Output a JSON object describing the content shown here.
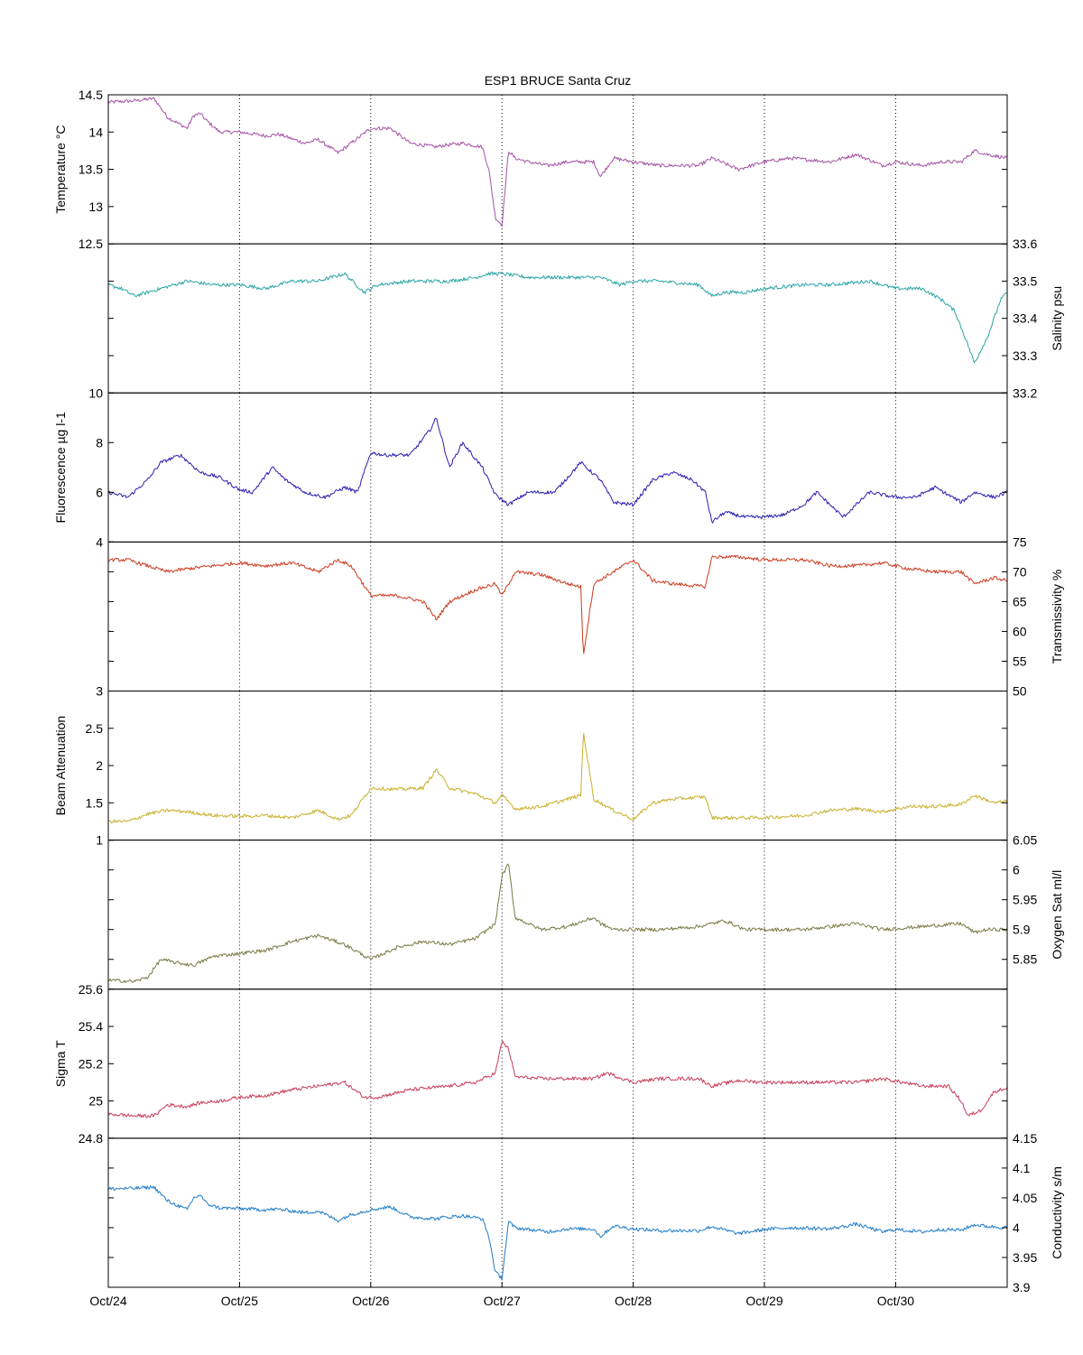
{
  "title": "ESP1 BRUCE Santa Cruz",
  "x_ticks": [
    "Oct/24",
    "Oct/25",
    "Oct/26",
    "Oct/27",
    "Oct/28",
    "Oct/29",
    "Oct/30"
  ],
  "chart_data": [
    {
      "type": "line",
      "name": "temperature",
      "ylabel": "Temperature °C",
      "axis_side": "left",
      "color": "#a552a5",
      "ylim": [
        12.5,
        14.5
      ],
      "yticks": [
        12.5,
        13,
        13.5,
        14,
        14.5
      ],
      "ytick_labels": [
        "12.5",
        "13",
        "13.5",
        "14",
        "14.5"
      ],
      "xlim": [
        0,
        6.85
      ],
      "x": [
        0,
        0.2,
        0.35,
        0.45,
        0.6,
        0.65,
        0.7,
        0.75,
        0.85,
        1,
        1.2,
        1.3,
        1.5,
        1.6,
        1.75,
        1.85,
        2,
        2.15,
        2.3,
        2.5,
        2.55,
        2.7,
        2.85,
        2.9,
        2.95,
        3,
        3.05,
        3.1,
        3.2,
        3.35,
        3.5,
        3.7,
        3.75,
        3.85,
        4,
        4.2,
        4.5,
        4.6,
        4.8,
        5,
        5.2,
        5.5,
        5.7,
        5.9,
        6,
        6.2,
        6.35,
        6.5,
        6.6,
        6.7,
        6.85
      ],
      "y": [
        14.4,
        14.42,
        14.45,
        14.2,
        14.05,
        14.22,
        14.25,
        14.15,
        14,
        14.0,
        13.95,
        13.97,
        13.85,
        13.9,
        13.72,
        13.85,
        14.05,
        14.05,
        13.85,
        13.8,
        13.82,
        13.85,
        13.8,
        13.5,
        12.85,
        12.75,
        13.75,
        13.65,
        13.6,
        13.55,
        13.6,
        13.6,
        13.4,
        13.65,
        13.6,
        13.55,
        13.55,
        13.65,
        13.5,
        13.6,
        13.65,
        13.6,
        13.7,
        13.55,
        13.6,
        13.55,
        13.6,
        13.6,
        13.75,
        13.7,
        13.65
      ]
    },
    {
      "type": "line",
      "name": "salinity",
      "ylabel": "Salinity psu",
      "axis_side": "right",
      "color": "#2aa5a5",
      "ylim": [
        33.2,
        33.6
      ],
      "yticks": [
        33.2,
        33.3,
        33.4,
        33.5,
        33.6
      ],
      "ytick_labels": [
        "33.2",
        "33.3",
        "33.4",
        "33.5",
        "33.6"
      ],
      "xlim": [
        0,
        6.85
      ],
      "x": [
        0,
        0.1,
        0.2,
        0.4,
        0.6,
        0.8,
        1,
        1.2,
        1.4,
        1.6,
        1.8,
        1.95,
        2.05,
        2.3,
        2.6,
        2.8,
        2.9,
        3,
        3.2,
        3.5,
        3.75,
        3.9,
        4,
        4.2,
        4.5,
        4.6,
        4.7,
        4.85,
        5,
        5.3,
        5.5,
        5.8,
        6,
        6.2,
        6.35,
        6.45,
        6.55,
        6.6,
        6.7,
        6.8,
        6.85
      ],
      "y": [
        33.49,
        33.48,
        33.46,
        33.48,
        33.5,
        33.49,
        33.49,
        33.48,
        33.5,
        33.5,
        33.52,
        33.47,
        33.49,
        33.5,
        33.5,
        33.51,
        33.52,
        33.52,
        33.51,
        33.51,
        33.51,
        33.49,
        33.5,
        33.5,
        33.49,
        33.46,
        33.47,
        33.47,
        33.48,
        33.49,
        33.49,
        33.5,
        33.48,
        33.48,
        33.45,
        33.42,
        33.33,
        33.28,
        33.35,
        33.45,
        33.47
      ]
    },
    {
      "type": "line",
      "name": "fluorescence",
      "ylabel": "Fluorescence µg l-1",
      "axis_side": "left",
      "color": "#2b1fb0",
      "ylim": [
        4,
        10
      ],
      "yticks": [
        4,
        6,
        8,
        10
      ],
      "ytick_labels": [
        "4",
        "6",
        "8",
        "10"
      ],
      "xlim": [
        0,
        6.85
      ],
      "x": [
        0,
        0.15,
        0.3,
        0.4,
        0.55,
        0.7,
        0.85,
        1,
        1.1,
        1.25,
        1.35,
        1.5,
        1.65,
        1.8,
        1.9,
        2,
        2.1,
        2.3,
        2.45,
        2.5,
        2.6,
        2.7,
        2.85,
        2.95,
        3.05,
        3.2,
        3.4,
        3.6,
        3.75,
        3.85,
        4,
        4.15,
        4.3,
        4.45,
        4.55,
        4.6,
        4.7,
        4.85,
        5,
        5.15,
        5.3,
        5.4,
        5.6,
        5.8,
        6,
        6.15,
        6.3,
        6.5,
        6.6,
        6.75,
        6.85
      ],
      "y": [
        6,
        5.8,
        6.5,
        7.2,
        7.5,
        6.8,
        6.6,
        6.1,
        6.0,
        7.0,
        6.5,
        6.0,
        5.8,
        6.2,
        6.0,
        7.6,
        7.5,
        7.5,
        8.5,
        9.0,
        7.0,
        8.0,
        7.0,
        5.9,
        5.5,
        6.0,
        6.0,
        7.2,
        6.5,
        5.6,
        5.5,
        6.5,
        6.8,
        6.5,
        6.0,
        4.8,
        5.2,
        5.0,
        5.0,
        5.1,
        5.5,
        6.0,
        5.0,
        6.0,
        5.8,
        5.8,
        6.2,
        5.6,
        6.0,
        5.8,
        6.0
      ]
    },
    {
      "type": "line",
      "name": "transmissivity",
      "ylabel": "Transmissivity %",
      "axis_side": "right",
      "color": "#cc3a1e",
      "ylim": [
        50,
        75
      ],
      "yticks": [
        50,
        55,
        60,
        65,
        70,
        75
      ],
      "ytick_labels": [
        "50",
        "55",
        "60",
        "65",
        "70",
        "75"
      ],
      "xlim": [
        0,
        6.85
      ],
      "x": [
        0,
        0.15,
        0.3,
        0.45,
        0.6,
        0.8,
        1,
        1.2,
        1.4,
        1.6,
        1.75,
        1.85,
        2,
        2.2,
        2.4,
        2.5,
        2.6,
        2.8,
        2.95,
        3,
        3.1,
        3.3,
        3.5,
        3.6,
        3.62,
        3.7,
        3.85,
        4,
        4.15,
        4.3,
        4.55,
        4.6,
        4.8,
        5,
        5.3,
        5.5,
        5.7,
        5.9,
        6.1,
        6.3,
        6.5,
        6.6,
        6.75,
        6.85
      ],
      "y": [
        72,
        72,
        71,
        70,
        70.5,
        71,
        71.5,
        71,
        71.5,
        70,
        72,
        71,
        66,
        66,
        65,
        62,
        65,
        67,
        68,
        66,
        70,
        69.5,
        68,
        67.5,
        56,
        68,
        70,
        72,
        68.5,
        68,
        67.5,
        72.5,
        72.5,
        72,
        72,
        71,
        71,
        71.5,
        70.5,
        70,
        70,
        68,
        69,
        68.5
      ]
    },
    {
      "type": "line",
      "name": "beam-attenuation",
      "ylabel": "Beam Attenuation",
      "axis_side": "left",
      "color": "#c9b02c",
      "ylim": [
        1,
        3
      ],
      "yticks": [
        1,
        1.5,
        2,
        2.5,
        3
      ],
      "ytick_labels": [
        "1",
        "1.5",
        "2",
        "2.5",
        "3"
      ],
      "xlim": [
        0,
        6.85
      ],
      "x": [
        0,
        0.15,
        0.3,
        0.45,
        0.6,
        0.8,
        1,
        1.2,
        1.4,
        1.6,
        1.75,
        1.85,
        2,
        2.2,
        2.4,
        2.5,
        2.6,
        2.8,
        2.95,
        3,
        3.1,
        3.3,
        3.5,
        3.6,
        3.62,
        3.7,
        3.85,
        4,
        4.15,
        4.3,
        4.55,
        4.6,
        4.8,
        5,
        5.3,
        5.5,
        5.7,
        5.9,
        6.1,
        6.3,
        6.5,
        6.6,
        6.75,
        6.85
      ],
      "y": [
        1.25,
        1.25,
        1.35,
        1.4,
        1.38,
        1.33,
        1.32,
        1.33,
        1.3,
        1.4,
        1.28,
        1.33,
        1.7,
        1.68,
        1.7,
        1.95,
        1.7,
        1.62,
        1.5,
        1.6,
        1.42,
        1.45,
        1.55,
        1.6,
        2.45,
        1.55,
        1.4,
        1.28,
        1.5,
        1.55,
        1.58,
        1.3,
        1.3,
        1.3,
        1.33,
        1.4,
        1.42,
        1.38,
        1.45,
        1.45,
        1.48,
        1.6,
        1.5,
        1.52
      ]
    },
    {
      "type": "line",
      "name": "oxygen-sat",
      "ylabel": "Oxygen Sat ml/l",
      "axis_side": "right",
      "color": "#7a7a45",
      "ylim": [
        5.8,
        6.05
      ],
      "yticks": [
        5.85,
        5.9,
        5.95,
        6,
        6.05
      ],
      "ytick_labels": [
        "5.85",
        "5.9",
        "5.95",
        "6",
        "6.05"
      ],
      "xlim": [
        0,
        6.85
      ],
      "x": [
        0,
        0.2,
        0.3,
        0.4,
        0.5,
        0.65,
        0.8,
        1,
        1.2,
        1.4,
        1.6,
        1.8,
        2,
        2.2,
        2.4,
        2.6,
        2.8,
        2.95,
        3,
        3.05,
        3.1,
        3.3,
        3.5,
        3.7,
        3.75,
        3.85,
        4,
        4.2,
        4.5,
        4.7,
        4.85,
        5,
        5.3,
        5.5,
        5.7,
        5.9,
        6.2,
        6.5,
        6.6,
        6.7,
        6.85
      ],
      "y": [
        5.815,
        5.813,
        5.82,
        5.85,
        5.845,
        5.84,
        5.855,
        5.86,
        5.865,
        5.88,
        5.89,
        5.875,
        5.85,
        5.87,
        5.88,
        5.875,
        5.885,
        5.91,
        5.99,
        6.01,
        5.92,
        5.9,
        5.905,
        5.92,
        5.91,
        5.9,
        5.9,
        5.9,
        5.905,
        5.915,
        5.9,
        5.9,
        5.9,
        5.905,
        5.91,
        5.9,
        5.905,
        5.91,
        5.895,
        5.9,
        5.9
      ]
    },
    {
      "type": "line",
      "name": "sigma-t",
      "ylabel": "Sigma T",
      "axis_side": "left",
      "color": "#c83c58",
      "ylim": [
        24.8,
        25.6
      ],
      "yticks": [
        24.8,
        25,
        25.2,
        25.4,
        25.6
      ],
      "ytick_labels": [
        "24.8",
        "25",
        "25.2",
        "25.4",
        "25.6"
      ],
      "xlim": [
        0,
        6.85
      ],
      "x": [
        0,
        0.2,
        0.35,
        0.45,
        0.6,
        0.7,
        0.85,
        1,
        1.2,
        1.4,
        1.6,
        1.8,
        1.95,
        2.05,
        2.3,
        2.6,
        2.8,
        2.95,
        3,
        3.05,
        3.1,
        3.3,
        3.5,
        3.7,
        3.8,
        4,
        4.2,
        4.5,
        4.6,
        4.8,
        5,
        5.3,
        5.5,
        5.7,
        5.9,
        6.2,
        6.4,
        6.5,
        6.55,
        6.65,
        6.75,
        6.85
      ],
      "y": [
        24.93,
        24.92,
        24.92,
        24.98,
        24.97,
        24.99,
        25.0,
        25.02,
        25.03,
        25.06,
        25.08,
        25.1,
        25.02,
        25.02,
        25.06,
        25.08,
        25.1,
        25.15,
        25.32,
        25.28,
        25.13,
        25.12,
        25.12,
        25.12,
        25.15,
        25.1,
        25.12,
        25.12,
        25.08,
        25.11,
        25.1,
        25.1,
        25.1,
        25.1,
        25.12,
        25.08,
        25.08,
        25.0,
        24.92,
        24.95,
        25.05,
        25.07
      ]
    },
    {
      "type": "line",
      "name": "conductivity",
      "ylabel": "Conductivity s/m",
      "axis_side": "right",
      "color": "#1e7ac8",
      "ylim": [
        3.9,
        4.15
      ],
      "yticks": [
        3.9,
        3.95,
        4,
        4.05,
        4.1,
        4.15
      ],
      "ytick_labels": [
        "3.9",
        "3.95",
        "4",
        "4.05",
        "4.1",
        "4.15"
      ],
      "xlim": [
        0,
        6.85
      ],
      "x": [
        0,
        0.2,
        0.35,
        0.45,
        0.6,
        0.65,
        0.7,
        0.75,
        0.85,
        1,
        1.2,
        1.3,
        1.5,
        1.6,
        1.75,
        1.85,
        2,
        2.15,
        2.3,
        2.5,
        2.55,
        2.7,
        2.85,
        2.9,
        2.95,
        3,
        3.05,
        3.1,
        3.2,
        3.35,
        3.5,
        3.7,
        3.75,
        3.85,
        4,
        4.2,
        4.5,
        4.6,
        4.8,
        5,
        5.2,
        5.5,
        5.7,
        5.9,
        6,
        6.2,
        6.35,
        6.5,
        6.6,
        6.7,
        6.85
      ],
      "y": [
        4.065,
        4.066,
        4.068,
        4.045,
        4.03,
        4.05,
        4.055,
        4.04,
        4.033,
        4.032,
        4.03,
        4.031,
        4.025,
        4.028,
        4.012,
        4.022,
        4.03,
        4.035,
        4.018,
        4.015,
        4.017,
        4.02,
        4.015,
        3.985,
        3.925,
        3.915,
        4.01,
        4.0,
        3.997,
        3.993,
        3.998,
        3.998,
        3.985,
        4.003,
        3.998,
        3.995,
        3.995,
        4.002,
        3.99,
        3.997,
        4.0,
        3.998,
        4.006,
        3.993,
        3.997,
        3.993,
        3.997,
        3.996,
        4.005,
        4.002,
        4.0
      ]
    }
  ]
}
